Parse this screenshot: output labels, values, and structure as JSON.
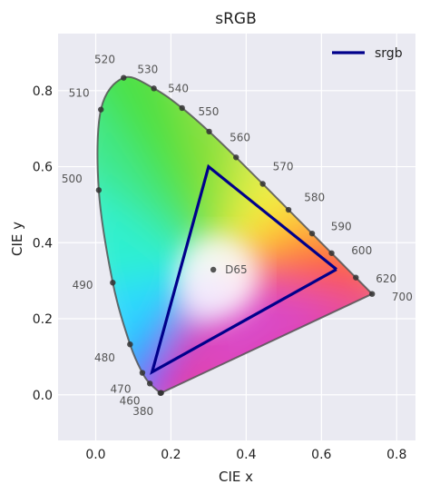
{
  "chart_data": {
    "type": "scatter",
    "title": "sRGB",
    "xlabel": "CIE x",
    "ylabel": "CIE y",
    "xlim": [
      -0.1,
      0.85
    ],
    "ylim": [
      -0.12,
      0.95
    ],
    "x_ticks": [
      0.0,
      0.2,
      0.4,
      0.6,
      0.8
    ],
    "y_ticks": [
      0.0,
      0.2,
      0.4,
      0.6,
      0.8
    ],
    "x_tick_labels": [
      "0.0",
      "0.2",
      "0.4",
      "0.6",
      "0.8"
    ],
    "y_tick_labels": [
      "0.0",
      "0.2",
      "0.4",
      "0.6",
      "0.8"
    ],
    "grid": true,
    "background": "#eaeaf2",
    "legend": {
      "position": "top-right",
      "entries": [
        {
          "label": "srgb",
          "color": "#00008b"
        }
      ]
    },
    "spectral_locus": {
      "points": [
        {
          "nm": "380",
          "x": 0.1741,
          "y": 0.005,
          "labeled": true
        },
        {
          "nm": "",
          "x": 0.172,
          "y": 0.0048,
          "labeled": false
        },
        {
          "nm": "460",
          "x": 0.144,
          "y": 0.0297,
          "labeled": true
        },
        {
          "nm": "470",
          "x": 0.1241,
          "y": 0.0578,
          "labeled": true
        },
        {
          "nm": "480",
          "x": 0.0913,
          "y": 0.1327,
          "labeled": true
        },
        {
          "nm": "490",
          "x": 0.0454,
          "y": 0.295,
          "labeled": true
        },
        {
          "nm": "500",
          "x": 0.0082,
          "y": 0.5384,
          "labeled": true
        },
        {
          "nm": "510",
          "x": 0.0139,
          "y": 0.7502,
          "labeled": true
        },
        {
          "nm": "520",
          "x": 0.0743,
          "y": 0.8338,
          "labeled": true
        },
        {
          "nm": "530",
          "x": 0.1547,
          "y": 0.8059,
          "labeled": true
        },
        {
          "nm": "540",
          "x": 0.2296,
          "y": 0.7543,
          "labeled": true
        },
        {
          "nm": "550",
          "x": 0.3016,
          "y": 0.6923,
          "labeled": true
        },
        {
          "nm": "560",
          "x": 0.3731,
          "y": 0.6245,
          "labeled": true
        },
        {
          "nm": "570",
          "x": 0.4441,
          "y": 0.5547,
          "labeled": true
        },
        {
          "nm": "580",
          "x": 0.5125,
          "y": 0.4866,
          "labeled": true
        },
        {
          "nm": "590",
          "x": 0.5752,
          "y": 0.4242,
          "labeled": true
        },
        {
          "nm": "600",
          "x": 0.627,
          "y": 0.3725,
          "labeled": true
        },
        {
          "nm": "620",
          "x": 0.6915,
          "y": 0.3083,
          "labeled": true
        },
        {
          "nm": "700",
          "x": 0.7347,
          "y": 0.2653,
          "labeled": true
        }
      ]
    },
    "series": [
      {
        "name": "srgb",
        "color": "#00008b",
        "points": [
          {
            "x": 0.64,
            "y": 0.33
          },
          {
            "x": 0.3,
            "y": 0.6
          },
          {
            "x": 0.15,
            "y": 0.06
          },
          {
            "x": 0.64,
            "y": 0.33
          }
        ]
      }
    ],
    "white_point": {
      "label": "D65",
      "x": 0.3127,
      "y": 0.329
    }
  }
}
